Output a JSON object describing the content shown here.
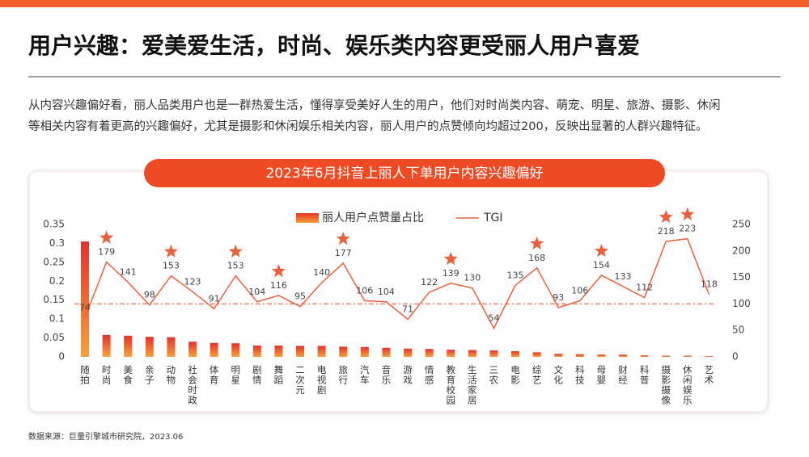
{
  "header": {
    "title": "用户兴趣：爱美爱生活，时尚、娱乐类内容更受丽人用户喜爱"
  },
  "paragraph": [
    "从内容兴趣偏好看，丽人品类用户也是一群热爱生活，懂得享受美好人生的用户，他们对时尚类内容、萌宠、明星、旅游、摄影、休闲",
    "等相关内容有着更高的兴趣偏好，尤其是摄影和休闲娱乐相关内容，丽人用户的点赞倾向均超过200，反映出显著的人群兴趣特征。"
  ],
  "chart_data": {
    "type": "bar-line",
    "title": "2023年6月抖音上丽人下单用户内容兴趣偏好",
    "categories": [
      "随拍",
      "时尚",
      "美食",
      "亲子",
      "动物",
      "社会时政",
      "体育",
      "明星",
      "剧情",
      "舞蹈",
      "二次元",
      "电视剧",
      "旅行",
      "汽车",
      "音乐",
      "游戏",
      "情感",
      "教育校园",
      "生活家居",
      "三农",
      "电影",
      "综艺",
      "文化",
      "科技",
      "母婴",
      "财经",
      "科普",
      "摄影摄像",
      "休闲娱乐",
      "艺术"
    ],
    "series": [
      {
        "name": "丽人用户点赞量占比",
        "type": "bar",
        "color": "#e5312b",
        "gradient_end": "#f7a03a",
        "values": [
          0.305,
          0.058,
          0.056,
          0.053,
          0.052,
          0.04,
          0.037,
          0.036,
          0.03,
          0.03,
          0.029,
          0.029,
          0.027,
          0.026,
          0.024,
          0.022,
          0.021,
          0.019,
          0.018,
          0.017,
          0.015,
          0.012,
          0.008,
          0.007,
          0.006,
          0.006,
          0.004,
          0.003,
          0.003,
          0.002
        ]
      },
      {
        "name": "TGI",
        "type": "line",
        "axis": "y2",
        "color": "#e8603c",
        "values": [
          74,
          179,
          141,
          98,
          153,
          123,
          91,
          153,
          104,
          116,
          95,
          140,
          177,
          106,
          104,
          71,
          122,
          139,
          130,
          54,
          135,
          168,
          93,
          106,
          154,
          133,
          112,
          218,
          223,
          118
        ]
      }
    ],
    "ylim": [
      0,
      0.35
    ],
    "yticks": [
      0,
      0.05,
      0.1,
      0.15,
      0.2,
      0.25,
      0.3,
      0.35
    ],
    "y2lim": [
      0,
      250
    ],
    "y2ticks": [
      0,
      50,
      100,
      150,
      200,
      250
    ],
    "reference_line": 100,
    "highlighted": [
      1,
      4,
      7,
      9,
      12,
      17,
      21,
      24,
      27,
      28
    ]
  },
  "footer": {
    "source": "数据来源：巨量引擎城市研究院，2023.06"
  }
}
